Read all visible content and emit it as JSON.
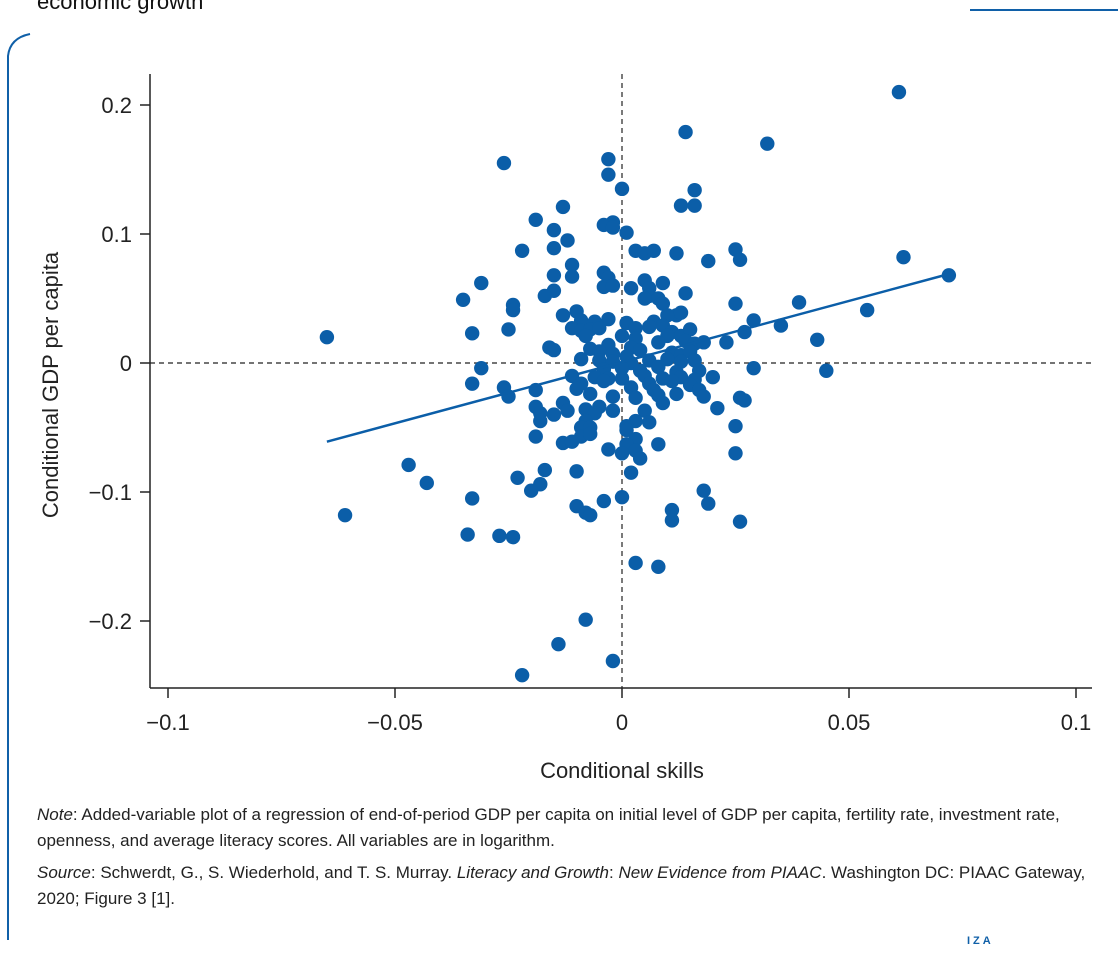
{
  "figure": {
    "title": "economic growth",
    "note_label": "Note",
    "note_text": ": Added-variable plot of a regression of end-of-period GDP per capita on initial level of GDP per capita, fertility rate, investment rate, openness, and average literacy scores. All variables are in logarithm.",
    "source_label": "Source",
    "source_text_1": ": Schwerdt, G., S. Wiederhold, and T. S. Murray. ",
    "source_italic": "Literacy and Growth",
    "source_text_2": ": ",
    "source_italic_2": "New Evidence from PIAAC",
    "source_text_3": ". Washington DC: PIAAC Gateway, 2020; Figure 3 [1].",
    "logo": "IZA",
    "colors": {
      "accent": "#1060a8",
      "points": "#0b5ea8"
    }
  },
  "chart_data": {
    "type": "scatter",
    "xlabel": "Conditional skills",
    "ylabel": "Conditional GDP per capita",
    "xlim": [
      -0.1,
      0.1
    ],
    "ylim": [
      -0.25,
      0.225
    ],
    "x_ticks": [
      -0.1,
      -0.05,
      0,
      0.05,
      0.1
    ],
    "x_tick_labels": [
      "−0.1",
      "−0.05",
      "0",
      "0.05",
      "0.1"
    ],
    "y_ticks": [
      -0.2,
      -0.1,
      0,
      0.1,
      0.2
    ],
    "y_tick_labels": [
      "−0.2",
      "−0.1",
      "0",
      "0.1",
      "0.2"
    ],
    "grid": false,
    "reference_lines": {
      "x": 0,
      "y": 0,
      "style": "dashed"
    },
    "fit_line": {
      "x": [
        -0.065,
        0.072
      ],
      "y": [
        -0.061,
        0.069
      ]
    },
    "points": [
      [
        0.061,
        0.21
      ],
      [
        0.014,
        0.179
      ],
      [
        0.032,
        0.17
      ],
      [
        -0.026,
        0.155
      ],
      [
        -0.003,
        0.158
      ],
      [
        -0.003,
        0.146
      ],
      [
        0.0,
        0.135
      ],
      [
        0.016,
        0.134
      ],
      [
        0.016,
        0.122
      ],
      [
        0.013,
        0.122
      ],
      [
        -0.013,
        0.121
      ],
      [
        -0.019,
        0.111
      ],
      [
        -0.002,
        0.109
      ],
      [
        -0.004,
        0.107
      ],
      [
        -0.002,
        0.105
      ],
      [
        -0.015,
        0.103
      ],
      [
        0.001,
        0.101
      ],
      [
        -0.012,
        0.095
      ],
      [
        -0.022,
        0.087
      ],
      [
        -0.015,
        0.089
      ],
      [
        0.003,
        0.087
      ],
      [
        0.005,
        0.085
      ],
      [
        0.007,
        0.087
      ],
      [
        0.025,
        0.088
      ],
      [
        0.012,
        0.085
      ],
      [
        0.062,
        0.082
      ],
      [
        0.026,
        0.08
      ],
      [
        0.019,
        0.079
      ],
      [
        -0.011,
        0.076
      ],
      [
        -0.015,
        0.068
      ],
      [
        -0.011,
        0.067
      ],
      [
        -0.004,
        0.07
      ],
      [
        -0.003,
        0.066
      ],
      [
        0.005,
        0.064
      ],
      [
        0.072,
        0.068
      ],
      [
        -0.031,
        0.062
      ],
      [
        -0.004,
        0.059
      ],
      [
        -0.002,
        0.06
      ],
      [
        0.002,
        0.058
      ],
      [
        0.006,
        0.058
      ],
      [
        0.009,
        0.062
      ],
      [
        -0.015,
        0.056
      ],
      [
        -0.017,
        0.052
      ],
      [
        0.006,
        0.052
      ],
      [
        0.014,
        0.054
      ],
      [
        -0.035,
        0.049
      ],
      [
        -0.024,
        0.045
      ],
      [
        0.005,
        0.05
      ],
      [
        0.008,
        0.05
      ],
      [
        0.009,
        0.046
      ],
      [
        0.039,
        0.047
      ],
      [
        0.025,
        0.046
      ],
      [
        0.054,
        0.041
      ],
      [
        -0.024,
        0.041
      ],
      [
        -0.01,
        0.04
      ],
      [
        -0.013,
        0.037
      ],
      [
        0.012,
        0.037
      ],
      [
        0.01,
        0.037
      ],
      [
        0.013,
        0.039
      ],
      [
        -0.009,
        0.033
      ],
      [
        -0.006,
        0.032
      ],
      [
        -0.003,
        0.034
      ],
      [
        0.001,
        0.031
      ],
      [
        0.007,
        0.032
      ],
      [
        0.009,
        0.029
      ],
      [
        0.029,
        0.033
      ],
      [
        0.035,
        0.029
      ],
      [
        -0.033,
        0.023
      ],
      [
        -0.025,
        0.026
      ],
      [
        -0.011,
        0.027
      ],
      [
        -0.009,
        0.025
      ],
      [
        -0.007,
        0.026
      ],
      [
        -0.005,
        0.027
      ],
      [
        0.0,
        0.021
      ],
      [
        0.003,
        0.027
      ],
      [
        0.006,
        0.028
      ],
      [
        0.011,
        0.024
      ],
      [
        0.013,
        0.021
      ],
      [
        0.015,
        0.026
      ],
      [
        0.027,
        0.024
      ],
      [
        -0.065,
        0.02
      ],
      [
        -0.008,
        0.021
      ],
      [
        0.003,
        0.019
      ],
      [
        0.01,
        0.021
      ],
      [
        0.014,
        0.017
      ],
      [
        0.043,
        0.018
      ],
      [
        -0.016,
        0.012
      ],
      [
        -0.015,
        0.01
      ],
      [
        -0.007,
        0.011
      ],
      [
        -0.003,
        0.014
      ],
      [
        0.002,
        0.012
      ],
      [
        0.008,
        0.016
      ],
      [
        0.016,
        0.015
      ],
      [
        0.018,
        0.016
      ],
      [
        0.023,
        0.016
      ],
      [
        -0.005,
        0.009
      ],
      [
        -0.002,
        0.007
      ],
      [
        0.001,
        0.005
      ],
      [
        0.004,
        0.01
      ],
      [
        0.011,
        0.008
      ],
      [
        0.013,
        0.006
      ],
      [
        0.015,
        0.009
      ],
      [
        -0.009,
        0.003
      ],
      [
        -0.005,
        0.002
      ],
      [
        -0.002,
        0.001
      ],
      [
        0.002,
        0.0
      ],
      [
        0.006,
        0.002
      ],
      [
        0.01,
        0.003
      ],
      [
        0.013,
        0.001
      ],
      [
        0.016,
        0.002
      ],
      [
        -0.031,
        -0.004
      ],
      [
        -0.004,
        -0.005
      ],
      [
        0.0,
        -0.004
      ],
      [
        0.004,
        -0.006
      ],
      [
        0.008,
        -0.003
      ],
      [
        0.012,
        -0.007
      ],
      [
        0.017,
        -0.006
      ],
      [
        0.029,
        -0.004
      ],
      [
        0.045,
        -0.006
      ],
      [
        -0.011,
        -0.01
      ],
      [
        -0.006,
        -0.011
      ],
      [
        -0.003,
        -0.012
      ],
      [
        0.0,
        -0.012
      ],
      [
        0.005,
        -0.01
      ],
      [
        0.009,
        -0.012
      ],
      [
        0.013,
        -0.011
      ],
      [
        0.016,
        -0.013
      ],
      [
        0.02,
        -0.011
      ],
      [
        -0.033,
        -0.016
      ],
      [
        -0.009,
        -0.016
      ],
      [
        -0.004,
        -0.014
      ],
      [
        0.006,
        -0.016
      ],
      [
        0.011,
        -0.014
      ],
      [
        0.015,
        -0.017
      ],
      [
        -0.026,
        -0.019
      ],
      [
        -0.019,
        -0.021
      ],
      [
        -0.01,
        -0.02
      ],
      [
        0.002,
        -0.019
      ],
      [
        0.007,
        -0.021
      ],
      [
        0.017,
        -0.021
      ],
      [
        -0.025,
        -0.026
      ],
      [
        -0.007,
        -0.024
      ],
      [
        -0.002,
        -0.026
      ],
      [
        0.003,
        -0.027
      ],
      [
        0.008,
        -0.025
      ],
      [
        0.012,
        -0.024
      ],
      [
        0.018,
        -0.026
      ],
      [
        0.026,
        -0.027
      ],
      [
        0.027,
        -0.029
      ],
      [
        -0.019,
        -0.034
      ],
      [
        -0.013,
        -0.031
      ],
      [
        -0.008,
        -0.036
      ],
      [
        -0.005,
        -0.034
      ],
      [
        0.009,
        -0.031
      ],
      [
        0.021,
        -0.035
      ],
      [
        -0.018,
        -0.039
      ],
      [
        -0.015,
        -0.04
      ],
      [
        -0.012,
        -0.037
      ],
      [
        -0.006,
        -0.039
      ],
      [
        -0.002,
        -0.037
      ],
      [
        0.005,
        -0.037
      ],
      [
        -0.018,
        -0.045
      ],
      [
        -0.008,
        -0.045
      ],
      [
        0.003,
        -0.045
      ],
      [
        0.001,
        -0.049
      ],
      [
        0.006,
        -0.046
      ],
      [
        0.025,
        -0.049
      ],
      [
        -0.009,
        -0.05
      ],
      [
        -0.007,
        -0.05
      ],
      [
        0.001,
        -0.052
      ],
      [
        -0.019,
        -0.057
      ],
      [
        -0.009,
        -0.057
      ],
      [
        -0.007,
        -0.055
      ],
      [
        0.003,
        -0.059
      ],
      [
        -0.013,
        -0.062
      ],
      [
        -0.011,
        -0.061
      ],
      [
        0.001,
        -0.063
      ],
      [
        0.008,
        -0.063
      ],
      [
        -0.003,
        -0.067
      ],
      [
        0.0,
        -0.07
      ],
      [
        0.003,
        -0.068
      ],
      [
        0.025,
        -0.07
      ],
      [
        0.004,
        -0.074
      ],
      [
        -0.017,
        -0.083
      ],
      [
        -0.01,
        -0.084
      ],
      [
        0.002,
        -0.085
      ],
      [
        -0.047,
        -0.079
      ],
      [
        -0.023,
        -0.089
      ],
      [
        -0.043,
        -0.093
      ],
      [
        -0.018,
        -0.094
      ],
      [
        -0.02,
        -0.099
      ],
      [
        0.018,
        -0.099
      ],
      [
        -0.033,
        -0.105
      ],
      [
        -0.004,
        -0.107
      ],
      [
        0.0,
        -0.104
      ],
      [
        -0.01,
        -0.111
      ],
      [
        0.011,
        -0.114
      ],
      [
        0.019,
        -0.109
      ],
      [
        -0.061,
        -0.118
      ],
      [
        -0.008,
        -0.116
      ],
      [
        -0.007,
        -0.118
      ],
      [
        0.011,
        -0.122
      ],
      [
        0.026,
        -0.123
      ],
      [
        -0.034,
        -0.133
      ],
      [
        -0.027,
        -0.134
      ],
      [
        -0.024,
        -0.135
      ],
      [
        0.003,
        -0.155
      ],
      [
        0.008,
        -0.158
      ],
      [
        -0.008,
        -0.199
      ],
      [
        -0.014,
        -0.218
      ],
      [
        -0.002,
        -0.231
      ],
      [
        -0.022,
        -0.242
      ]
    ]
  }
}
